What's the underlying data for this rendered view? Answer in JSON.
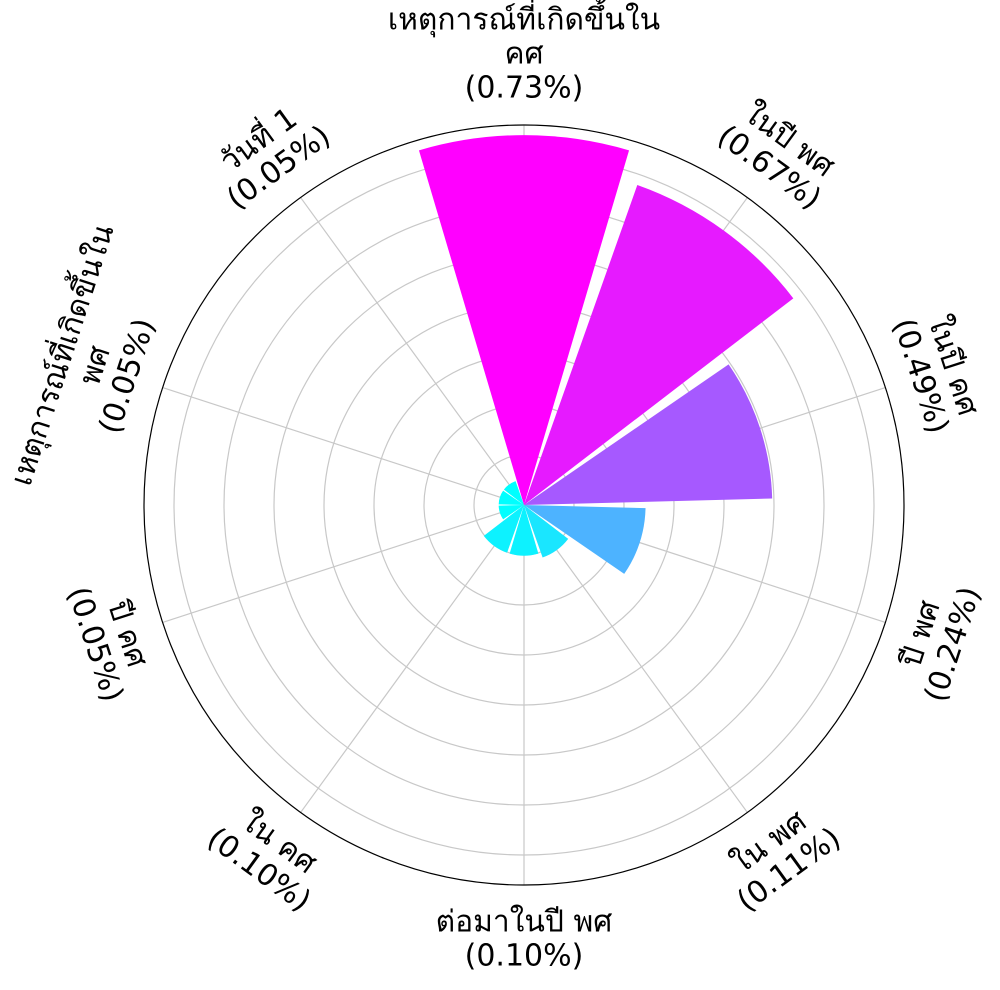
{
  "chart_data": {
    "type": "polar-bar",
    "title": "",
    "grid": true,
    "categories": [
      "เหตุการณ์ที่เกิดขึ้นใน คศ",
      "ในปี พศ",
      "ในปี คศ",
      "ปี พศ",
      "ใน พศ",
      "ต่อมาในปี พศ",
      "ใน คศ",
      "ปี คศ",
      "เหตุการณ์ที่เกิดขึ้นใน พศ",
      "วันที่ 1"
    ],
    "values": [
      0.73,
      0.67,
      0.49,
      0.24,
      0.11,
      0.1,
      0.1,
      0.05,
      0.05,
      0.05
    ],
    "value_labels": [
      "(0.73%)",
      "(0.67%)",
      "(0.49%)",
      "(0.24%)",
      "(0.11%)",
      "(0.10%)",
      "(0.10%)",
      "(0.05%)",
      "(0.05%)",
      "(0.05%)"
    ],
    "category_label_lines": [
      [
        "เหตุการณ์ที่เกิดขึ้นใน",
        "คศ"
      ],
      [
        "ในปี พศ"
      ],
      [
        "ในปี คศ"
      ],
      [
        "ปี พศ"
      ],
      [
        "ใน พศ"
      ],
      [
        "ต่อมาในปี พศ"
      ],
      [
        "ใน คศ"
      ],
      [
        "ปี คศ"
      ],
      [
        "เหตุการณ์ที่เกิดขึ้นใน",
        "พศ"
      ],
      [
        "วันที่ 1"
      ]
    ],
    "colors": [
      "#ff00ff",
      "#e61aff",
      "#a659ff",
      "#4db3ff",
      "#1ae6ff",
      "#0df2ff",
      "#0df2ff",
      "#00ffff",
      "#00ffff",
      "#00ffff"
    ],
    "colormap": "cool",
    "ylim": [
      0,
      0.75
    ]
  }
}
